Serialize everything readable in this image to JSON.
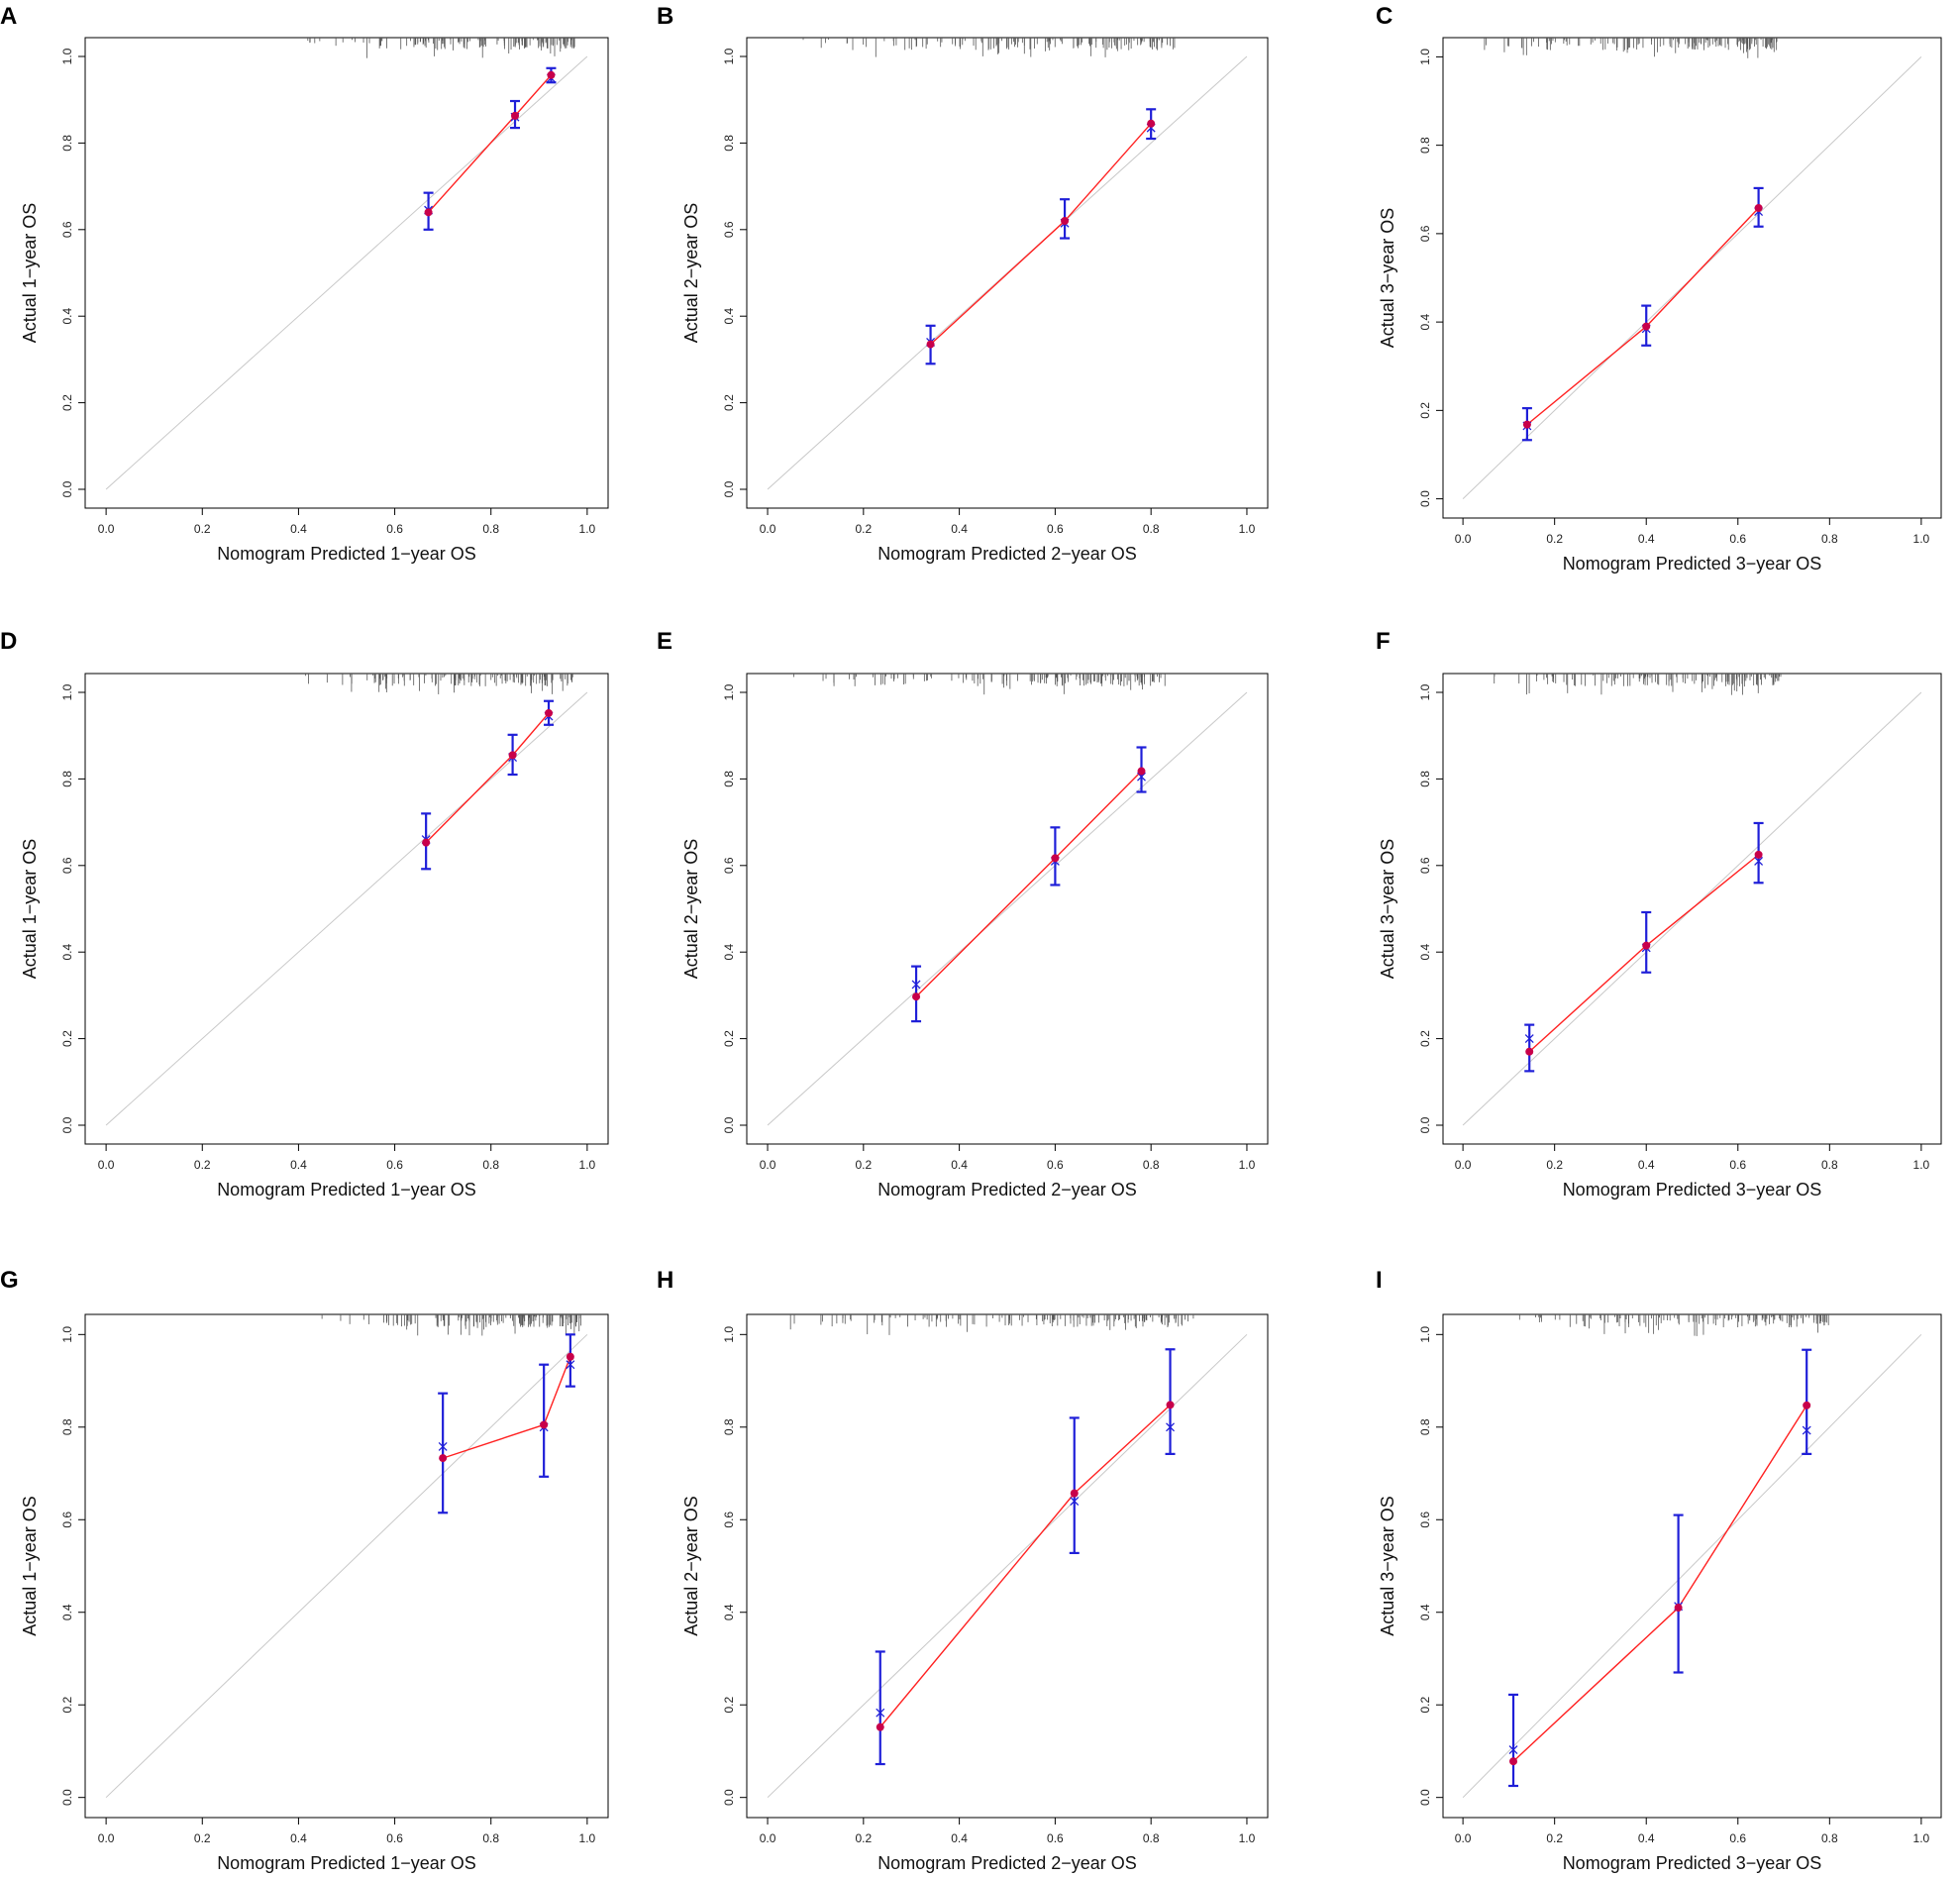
{
  "figure": {
    "colors": {
      "observed_line": "#ff2020",
      "observed_point": "#c8004a",
      "error_bar": "#1f1fd8",
      "ideal_line": "#c8c8c8",
      "rug": "#555555",
      "frame": "#000000"
    },
    "axis_ticks": [
      "0.0",
      "0.2",
      "0.4",
      "0.6",
      "0.8",
      "1.0"
    ]
  },
  "chart_data": [
    {
      "panel": "A",
      "type": "scatter",
      "title": "",
      "xlabel": "Nomogram Predicted 1−year OS",
      "ylabel": "Actual 1−year OS",
      "xlim": [
        0,
        1
      ],
      "ylim": [
        0,
        1
      ],
      "series": [
        {
          "name": "Ideal",
          "x": [
            0,
            1
          ],
          "y": [
            0,
            1
          ]
        },
        {
          "name": "Observed",
          "x": [
            0.67,
            0.85,
            0.925
          ],
          "y": [
            0.64,
            0.863,
            0.957
          ],
          "lower": [
            0.6,
            0.835,
            0.94
          ],
          "upper": [
            0.685,
            0.897,
            0.973
          ],
          "corrected": [
            0.645,
            0.86,
            0.95
          ]
        }
      ]
    },
    {
      "panel": "B",
      "type": "scatter",
      "title": "",
      "xlabel": "Nomogram Predicted 2−year OS",
      "ylabel": "Actual 2−year OS",
      "xlim": [
        0,
        1
      ],
      "ylim": [
        0,
        1
      ],
      "series": [
        {
          "name": "Ideal",
          "x": [
            0,
            1
          ],
          "y": [
            0,
            1
          ]
        },
        {
          "name": "Observed",
          "x": [
            0.34,
            0.62,
            0.8
          ],
          "y": [
            0.335,
            0.62,
            0.845
          ],
          "lower": [
            0.29,
            0.58,
            0.81
          ],
          "upper": [
            0.378,
            0.67,
            0.878
          ],
          "corrected": [
            0.34,
            0.615,
            0.835
          ]
        }
      ]
    },
    {
      "panel": "C",
      "type": "scatter",
      "title": "",
      "xlabel": "Nomogram Predicted 3−year OS",
      "ylabel": "Actual 3−year OS",
      "xlim": [
        0,
        1
      ],
      "ylim": [
        0,
        1
      ],
      "series": [
        {
          "name": "Ideal",
          "x": [
            0,
            1
          ],
          "y": [
            0,
            1
          ]
        },
        {
          "name": "Observed",
          "x": [
            0.14,
            0.4,
            0.645
          ],
          "y": [
            0.168,
            0.39,
            0.658
          ],
          "lower": [
            0.133,
            0.347,
            0.616
          ],
          "upper": [
            0.205,
            0.437,
            0.703
          ],
          "corrected": [
            0.165,
            0.385,
            0.65
          ]
        }
      ]
    },
    {
      "panel": "D",
      "type": "scatter",
      "title": "",
      "xlabel": "Nomogram Predicted 1−year OS",
      "ylabel": "Actual 1−year OS",
      "xlim": [
        0,
        1
      ],
      "ylim": [
        0,
        1
      ],
      "series": [
        {
          "name": "Ideal",
          "x": [
            0,
            1
          ],
          "y": [
            0,
            1
          ]
        },
        {
          "name": "Observed",
          "x": [
            0.665,
            0.845,
            0.92
          ],
          "y": [
            0.653,
            0.855,
            0.952
          ],
          "lower": [
            0.592,
            0.81,
            0.925
          ],
          "upper": [
            0.72,
            0.902,
            0.98
          ],
          "corrected": [
            0.66,
            0.85,
            0.945
          ]
        }
      ]
    },
    {
      "panel": "E",
      "type": "scatter",
      "title": "",
      "xlabel": "Nomogram Predicted 2−year OS",
      "ylabel": "Actual 2−year OS",
      "xlim": [
        0,
        1
      ],
      "ylim": [
        0,
        1
      ],
      "series": [
        {
          "name": "Ideal",
          "x": [
            0,
            1
          ],
          "y": [
            0,
            1
          ]
        },
        {
          "name": "Observed",
          "x": [
            0.31,
            0.6,
            0.78
          ],
          "y": [
            0.297,
            0.617,
            0.818
          ],
          "lower": [
            0.24,
            0.555,
            0.77
          ],
          "upper": [
            0.367,
            0.688,
            0.873
          ],
          "corrected": [
            0.325,
            0.61,
            0.805
          ]
        }
      ]
    },
    {
      "panel": "F",
      "type": "scatter",
      "title": "",
      "xlabel": "Nomogram Predicted 3−year OS",
      "ylabel": "Actual 3−year OS",
      "xlim": [
        0,
        1
      ],
      "ylim": [
        0,
        1
      ],
      "series": [
        {
          "name": "Ideal",
          "x": [
            0,
            1
          ],
          "y": [
            0,
            1
          ]
        },
        {
          "name": "Observed",
          "x": [
            0.145,
            0.4,
            0.645
          ],
          "y": [
            0.17,
            0.415,
            0.625
          ],
          "lower": [
            0.125,
            0.353,
            0.56
          ],
          "upper": [
            0.232,
            0.492,
            0.698
          ],
          "corrected": [
            0.2,
            0.41,
            0.61
          ]
        }
      ]
    },
    {
      "panel": "G",
      "type": "scatter",
      "title": "",
      "xlabel": "Nomogram Predicted 1−year OS",
      "ylabel": "Actual 1−year OS",
      "xlim": [
        0,
        1
      ],
      "ylim": [
        0,
        1
      ],
      "series": [
        {
          "name": "Ideal",
          "x": [
            0,
            1
          ],
          "y": [
            0,
            1
          ]
        },
        {
          "name": "Observed",
          "x": [
            0.7,
            0.91,
            0.965
          ],
          "y": [
            0.733,
            0.805,
            0.952
          ],
          "lower": [
            0.615,
            0.693,
            0.888
          ],
          "upper": [
            0.873,
            0.935,
            1.0
          ],
          "corrected": [
            0.758,
            0.8,
            0.935
          ]
        }
      ]
    },
    {
      "panel": "H",
      "type": "scatter",
      "title": "",
      "xlabel": "Nomogram Predicted 2−year OS",
      "ylabel": "Actual 2−year OS",
      "xlim": [
        0,
        1
      ],
      "ylim": [
        0,
        1
      ],
      "series": [
        {
          "name": "Ideal",
          "x": [
            0,
            1
          ],
          "y": [
            0,
            1
          ]
        },
        {
          "name": "Observed",
          "x": [
            0.235,
            0.64,
            0.84
          ],
          "y": [
            0.152,
            0.657,
            0.848
          ],
          "lower": [
            0.072,
            0.528,
            0.742
          ],
          "upper": [
            0.315,
            0.82,
            0.968
          ],
          "corrected": [
            0.183,
            0.64,
            0.8
          ]
        }
      ]
    },
    {
      "panel": "I",
      "type": "scatter",
      "title": "",
      "xlabel": "Nomogram Predicted 3−year OS",
      "ylabel": "Actual 3−year OS",
      "xlim": [
        0,
        1
      ],
      "ylim": [
        0,
        1
      ],
      "series": [
        {
          "name": "Ideal",
          "x": [
            0,
            1
          ],
          "y": [
            0,
            1
          ]
        },
        {
          "name": "Observed",
          "x": [
            0.11,
            0.47,
            0.75
          ],
          "y": [
            0.078,
            0.41,
            0.847
          ],
          "lower": [
            0.025,
            0.27,
            0.742
          ],
          "upper": [
            0.222,
            0.61,
            0.967
          ],
          "corrected": [
            0.103,
            0.413,
            0.793
          ]
        }
      ]
    }
  ]
}
